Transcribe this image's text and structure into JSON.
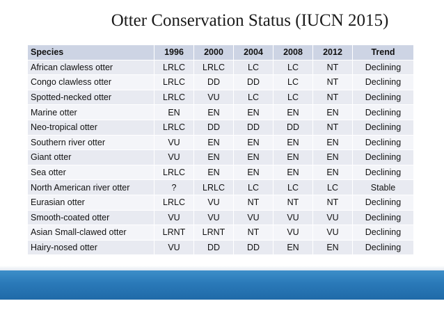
{
  "title": "Otter Conservation Status  (IUCN 2015)",
  "table": {
    "headers": [
      "Species",
      "1996",
      "2000",
      "2004",
      "2008",
      "2012",
      "Trend"
    ],
    "rows": [
      [
        "African clawless otter",
        "LRLC",
        "LRLC",
        "LC",
        "LC",
        "NT",
        "Declining"
      ],
      [
        "Congo clawless otter",
        "LRLC",
        "DD",
        "DD",
        "LC",
        "NT",
        "Declining"
      ],
      [
        "Spotted-necked otter",
        "LRLC",
        "VU",
        "LC",
        "LC",
        "NT",
        "Declining"
      ],
      [
        "Marine otter",
        "EN",
        "EN",
        "EN",
        "EN",
        "EN",
        "Declining"
      ],
      [
        "Neo-tropical otter",
        "LRLC",
        "DD",
        "DD",
        "DD",
        "NT",
        "Declining"
      ],
      [
        "Southern river otter",
        "VU",
        "EN",
        "EN",
        "EN",
        "EN",
        "Declining"
      ],
      [
        "Giant otter",
        "VU",
        "EN",
        "EN",
        "EN",
        "EN",
        "Declining"
      ],
      [
        "Sea otter",
        "LRLC",
        "EN",
        "EN",
        "EN",
        "EN",
        "Declining"
      ],
      [
        "North American river otter",
        "?",
        "LRLC",
        "LC",
        "LC",
        "LC",
        "Stable"
      ],
      [
        "Eurasian otter",
        "LRLC",
        "VU",
        "NT",
        "NT",
        "NT",
        "Declining"
      ],
      [
        "Smooth-coated otter",
        "VU",
        "VU",
        "VU",
        "VU",
        "VU",
        "Declining"
      ],
      [
        "Asian Small-clawed otter",
        "LRNT",
        "LRNT",
        "NT",
        "VU",
        "VU",
        "Declining"
      ],
      [
        "Hairy-nosed otter",
        "VU",
        "DD",
        "DD",
        "EN",
        "EN",
        "Declining"
      ]
    ]
  },
  "colors": {
    "header_bg": "#cdd4e4",
    "row_odd_bg": "#e8eaf1",
    "row_even_bg": "#f4f5f9",
    "band": "#2a79b8"
  }
}
